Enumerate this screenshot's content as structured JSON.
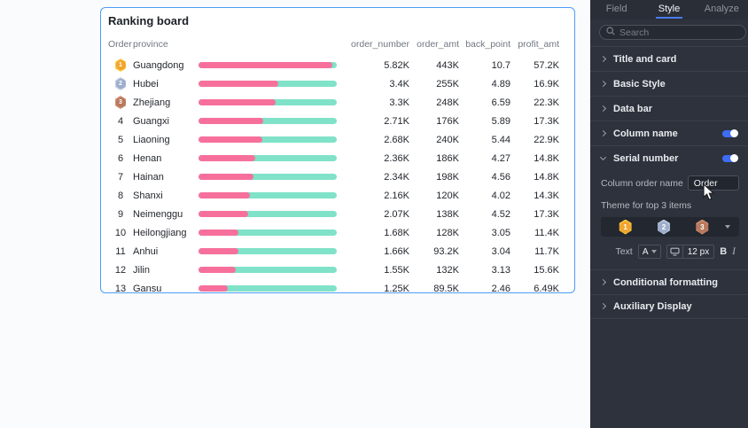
{
  "card": {
    "title": "Ranking board",
    "headers": {
      "order": "Order",
      "province": "province",
      "metrics": [
        "order_number",
        "order_amt",
        "back_point",
        "profit_amt"
      ]
    },
    "rows": [
      {
        "order": "1",
        "medal": "gold",
        "province": "Guangdong",
        "bar_pct": 97,
        "order_number": "5.82K",
        "order_amt": "443K",
        "back_point": "10.7",
        "profit_amt": "57.2K"
      },
      {
        "order": "2",
        "medal": "silver",
        "province": "Hubei",
        "bar_pct": 58,
        "order_number": "3.4K",
        "order_amt": "255K",
        "back_point": "4.89",
        "profit_amt": "16.9K"
      },
      {
        "order": "3",
        "medal": "bronze",
        "province": "Zhejiang",
        "bar_pct": 56,
        "order_number": "3.3K",
        "order_amt": "248K",
        "back_point": "6.59",
        "profit_amt": "22.3K"
      },
      {
        "order": "4",
        "medal": null,
        "province": "Guangxi",
        "bar_pct": 47,
        "order_number": "2.71K",
        "order_amt": "176K",
        "back_point": "5.89",
        "profit_amt": "17.3K"
      },
      {
        "order": "5",
        "medal": null,
        "province": "Liaoning",
        "bar_pct": 46,
        "order_number": "2.68K",
        "order_amt": "240K",
        "back_point": "5.44",
        "profit_amt": "22.9K"
      },
      {
        "order": "6",
        "medal": null,
        "province": "Henan",
        "bar_pct": 41,
        "order_number": "2.36K",
        "order_amt": "186K",
        "back_point": "4.27",
        "profit_amt": "14.8K"
      },
      {
        "order": "7",
        "medal": null,
        "province": "Hainan",
        "bar_pct": 40,
        "order_number": "2.34K",
        "order_amt": "198K",
        "back_point": "4.56",
        "profit_amt": "14.8K"
      },
      {
        "order": "8",
        "medal": null,
        "province": "Shanxi",
        "bar_pct": 37,
        "order_number": "2.16K",
        "order_amt": "120K",
        "back_point": "4.02",
        "profit_amt": "14.3K"
      },
      {
        "order": "9",
        "medal": null,
        "province": "Neimenggu",
        "bar_pct": 36,
        "order_number": "2.07K",
        "order_amt": "138K",
        "back_point": "4.52",
        "profit_amt": "17.3K"
      },
      {
        "order": "10",
        "medal": null,
        "province": "Heilongjiang",
        "bar_pct": 29,
        "order_number": "1.68K",
        "order_amt": "128K",
        "back_point": "3.05",
        "profit_amt": "11.4K"
      },
      {
        "order": "11",
        "medal": null,
        "province": "Anhui",
        "bar_pct": 29,
        "order_number": "1.66K",
        "order_amt": "93.2K",
        "back_point": "3.04",
        "profit_amt": "11.7K"
      },
      {
        "order": "12",
        "medal": null,
        "province": "Jilin",
        "bar_pct": 27,
        "order_number": "1.55K",
        "order_amt": "132K",
        "back_point": "3.13",
        "profit_amt": "15.6K"
      },
      {
        "order": "13",
        "medal": null,
        "province": "Gansu",
        "bar_pct": 21,
        "order_number": "1.25K",
        "order_amt": "89.5K",
        "back_point": "2.46",
        "profit_amt": "6.49K"
      }
    ]
  },
  "panel": {
    "tabs": [
      {
        "label": "Field",
        "active": false
      },
      {
        "label": "Style",
        "active": true
      },
      {
        "label": "Analyze",
        "active": false
      }
    ],
    "search": {
      "placeholder": "Search"
    },
    "sections": [
      {
        "label": "Title and card",
        "expanded": false,
        "toggle": null
      },
      {
        "label": "Basic Style",
        "expanded": false,
        "toggle": null
      },
      {
        "label": "Data bar",
        "expanded": false,
        "toggle": null
      },
      {
        "label": "Column name",
        "expanded": false,
        "toggle": "on"
      },
      {
        "label": "Serial number",
        "expanded": true,
        "toggle": "on"
      }
    ],
    "serial_number": {
      "column_order_name_label": "Column order name",
      "column_order_name_value": "Order",
      "theme_label": "Theme for top 3 items",
      "theme_medals": [
        "1",
        "2",
        "3"
      ],
      "text_label": "Text",
      "font_color_button": "A",
      "font_size_value": "12 px",
      "bold_label": "B",
      "italic_label": "I"
    },
    "bottom_sections": [
      {
        "label": "Conditional formatting"
      },
      {
        "label": "Auxiliary Display"
      }
    ]
  },
  "colors": {
    "card_border_blue": "#4d9cf8",
    "bar_pink": "#f7709c",
    "bar_teal": "#80e2c8",
    "toggle_on_blue": "#3e6cf4",
    "tab_underline_blue": "#4a7cf6",
    "medal_gold": "#ffc83d",
    "medal_silver": "#bfcbe0",
    "medal_bronze": "#d08f73",
    "panel_bg": "#2e323c"
  }
}
